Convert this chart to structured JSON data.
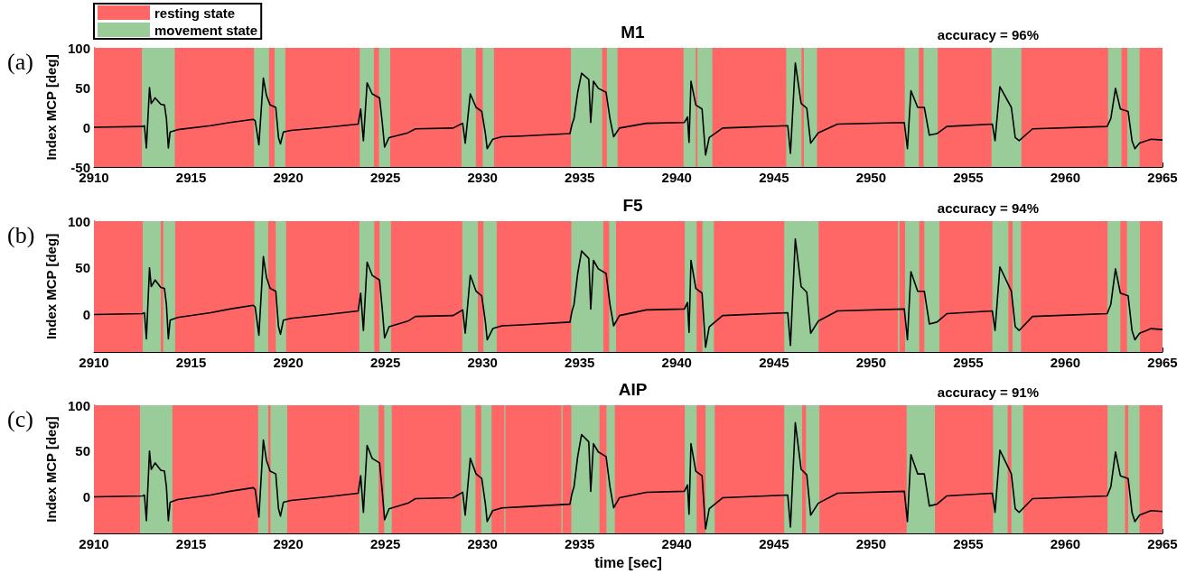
{
  "chart_data": [
    {
      "type": "line",
      "title": "M1",
      "ylabel": "Index MCP [deg]",
      "annotations": [
        "(a)",
        "accuracy = 96%"
      ],
      "legend": "top left",
      "xlim": [
        2910,
        2965
      ],
      "xticks": [
        2910,
        2915,
        2920,
        2925,
        2930,
        2935,
        2940,
        2945,
        2950,
        2955,
        2960,
        2965
      ],
      "ylim": [
        -50,
        100
      ],
      "yticks": [
        -50,
        0,
        50,
        100
      ],
      "x": [
        2910,
        2912.5,
        2912.6,
        2912.7,
        2912.86,
        2912.95,
        2913.15,
        2913.44,
        2913.63,
        2913.73,
        2913.83,
        2913.92,
        2914.31,
        2916,
        2917,
        2918.2,
        2918.3,
        2918.49,
        2918.72,
        2918.88,
        2919.07,
        2919.36,
        2919.5,
        2919.6,
        2919.75,
        2920.14,
        2922,
        2923.6,
        2923.73,
        2923.87,
        2924.06,
        2924.32,
        2924.7,
        2924.84,
        2924.96,
        2925.19,
        2926.16,
        2926.55,
        2928.49,
        2928.98,
        2929.11,
        2929.37,
        2929.67,
        2929.96,
        2930.15,
        2930.24,
        2930.53,
        2931,
        2932,
        2934.5,
        2934.61,
        2934.71,
        2934.9,
        2935.1,
        2935.47,
        2935.57,
        2935.71,
        2935.96,
        2936.36,
        2936.56,
        2936.75,
        2937.05,
        2938.43,
        2940.39,
        2940.55,
        2940.63,
        2940.73,
        2940.98,
        2941.3,
        2941.48,
        2941.67,
        2942.36,
        2945.71,
        2945.85,
        2946.1,
        2946.4,
        2946.69,
        2946.89,
        2947.28,
        2948.27,
        2951.71,
        2951.87,
        2952.05,
        2952.4,
        2952.74,
        2953,
        2953.39,
        2953.9,
        2956.24,
        2956.38,
        2956.63,
        2957.22,
        2957.42,
        2957.62,
        2958.31,
        2962.15,
        2962.34,
        2962.58,
        2962.83,
        2963.23,
        2963.43,
        2963.58,
        2963.82,
        2964.41,
        2965
      ],
      "series": [
        {
          "color": "#000000",
          "values": [
            0,
            1,
            2,
            -26,
            50,
            30,
            37,
            29,
            28,
            11,
            -26,
            -6,
            -3,
            2,
            6,
            10,
            8,
            -22,
            62,
            40,
            28,
            25,
            -13,
            -21,
            -6,
            -4,
            0,
            4,
            23,
            -17,
            56,
            42,
            37,
            6,
            -25,
            -13,
            -7,
            -2,
            -1,
            5,
            -20,
            42,
            25,
            20,
            -8,
            -27,
            -15,
            -12,
            -11,
            -8,
            4,
            11,
            44,
            68,
            60,
            6,
            58,
            49,
            44,
            11,
            -12,
            -1,
            5,
            6,
            13,
            -19,
            58,
            28,
            23,
            -35,
            -13,
            -1,
            2,
            -33,
            81,
            30,
            24,
            -20,
            -7,
            4,
            6,
            -27,
            46,
            25,
            25,
            -10,
            -8,
            1,
            4,
            -17,
            51,
            25,
            -13,
            -17,
            -2,
            1,
            11,
            49,
            23,
            20,
            -17,
            -27,
            -20,
            -15,
            -16
          ]
        }
      ],
      "bands": [
        {
          "axis": "x",
          "from": 2910,
          "to": 2965,
          "color": "#ff6666",
          "label": "resting state"
        },
        {
          "axis": "x",
          "from": 2912.47,
          "to": 2914.16,
          "color": "#99cc99",
          "label": "movement state"
        },
        {
          "axis": "x",
          "from": 2918.24,
          "to": 2919.01,
          "color": "#99cc99"
        },
        {
          "axis": "x",
          "from": 2919.3,
          "to": 2919.85,
          "color": "#99cc99"
        },
        {
          "axis": "x",
          "from": 2923.68,
          "to": 2924.41,
          "color": "#99cc99"
        },
        {
          "axis": "x",
          "from": 2924.67,
          "to": 2925.25,
          "color": "#99cc99"
        },
        {
          "axis": "x",
          "from": 2928.92,
          "to": 2929.66,
          "color": "#99cc99"
        },
        {
          "axis": "x",
          "from": 2930.01,
          "to": 2930.59,
          "color": "#99cc99"
        },
        {
          "axis": "x",
          "from": 2934.55,
          "to": 2936.16,
          "color": "#99cc99"
        },
        {
          "axis": "x",
          "from": 2936.4,
          "to": 2936.95,
          "color": "#99cc99"
        },
        {
          "axis": "x",
          "from": 2940.35,
          "to": 2940.98,
          "color": "#99cc99"
        },
        {
          "axis": "x",
          "from": 2941.06,
          "to": 2941.83,
          "color": "#99cc99"
        },
        {
          "axis": "x",
          "from": 2945.63,
          "to": 2946.42,
          "color": "#99cc99"
        },
        {
          "axis": "x",
          "from": 2946.54,
          "to": 2947.22,
          "color": "#99cc99"
        },
        {
          "axis": "x",
          "from": 2951.73,
          "to": 2952.46,
          "color": "#99cc99"
        },
        {
          "axis": "x",
          "from": 2952.7,
          "to": 2953.43,
          "color": "#99cc99"
        },
        {
          "axis": "x",
          "from": 2956.2,
          "to": 2957.74,
          "color": "#99cc99"
        },
        {
          "axis": "x",
          "from": 2962.2,
          "to": 2962.89,
          "color": "#99cc99"
        },
        {
          "axis": "x",
          "from": 2963.19,
          "to": 2963.82,
          "color": "#99cc99"
        }
      ]
    },
    {
      "type": "line",
      "title": "F5",
      "ylabel": "Index MCP [deg]",
      "annotations": [
        "(b)",
        "accuracy = 94%"
      ],
      "xlim": [
        2910,
        2965
      ],
      "xticks": [
        2910,
        2915,
        2920,
        2925,
        2930,
        2935,
        2940,
        2945,
        2950,
        2955,
        2960,
        2965
      ],
      "ylim": [
        -40,
        100
      ],
      "yticks": [
        0,
        50,
        100
      ],
      "x": [
        2910,
        2912.5,
        2912.6,
        2912.7,
        2912.86,
        2912.95,
        2913.15,
        2913.44,
        2913.63,
        2913.73,
        2913.83,
        2913.92,
        2914.31,
        2916,
        2917,
        2918.2,
        2918.3,
        2918.49,
        2918.72,
        2918.88,
        2919.07,
        2919.36,
        2919.5,
        2919.6,
        2919.75,
        2920.14,
        2922,
        2923.6,
        2923.73,
        2923.87,
        2924.06,
        2924.32,
        2924.7,
        2924.84,
        2924.96,
        2925.19,
        2926.16,
        2926.55,
        2928.49,
        2928.98,
        2929.11,
        2929.37,
        2929.67,
        2929.96,
        2930.15,
        2930.24,
        2930.53,
        2931,
        2932,
        2934.5,
        2934.61,
        2934.71,
        2934.9,
        2935.1,
        2935.47,
        2935.57,
        2935.71,
        2935.96,
        2936.36,
        2936.56,
        2936.75,
        2937.05,
        2938.43,
        2940.39,
        2940.55,
        2940.63,
        2940.73,
        2940.98,
        2941.3,
        2941.48,
        2941.67,
        2942.36,
        2945.71,
        2945.85,
        2946.1,
        2946.4,
        2946.69,
        2946.89,
        2947.28,
        2948.27,
        2951.71,
        2951.87,
        2952.05,
        2952.4,
        2952.74,
        2953,
        2953.39,
        2953.9,
        2956.24,
        2956.38,
        2956.63,
        2957.22,
        2957.42,
        2957.62,
        2958.31,
        2962.15,
        2962.34,
        2962.58,
        2962.83,
        2963.23,
        2963.43,
        2963.58,
        2963.82,
        2964.41,
        2965
      ],
      "series": [
        {
          "color": "#000000",
          "values": [
            0,
            1,
            2,
            -26,
            50,
            30,
            37,
            29,
            28,
            11,
            -26,
            -6,
            -3,
            2,
            6,
            10,
            8,
            -22,
            62,
            40,
            28,
            25,
            -13,
            -21,
            -6,
            -4,
            0,
            4,
            23,
            -17,
            56,
            42,
            37,
            6,
            -25,
            -13,
            -7,
            -2,
            -1,
            5,
            -20,
            42,
            25,
            20,
            -8,
            -27,
            -15,
            -12,
            -11,
            -8,
            4,
            11,
            44,
            68,
            60,
            6,
            58,
            49,
            44,
            11,
            -12,
            -1,
            5,
            6,
            13,
            -19,
            58,
            28,
            23,
            -35,
            -13,
            -1,
            2,
            -33,
            81,
            30,
            24,
            -20,
            -7,
            4,
            6,
            -27,
            46,
            25,
            25,
            -10,
            -8,
            1,
            4,
            -17,
            51,
            25,
            -13,
            -17,
            -2,
            1,
            11,
            49,
            23,
            20,
            -17,
            -27,
            -20,
            -15,
            -16
          ]
        }
      ],
      "bands": [
        {
          "axis": "x",
          "from": 2910,
          "to": 2965,
          "color": "#ff6666"
        },
        {
          "axis": "x",
          "from": 2912.51,
          "to": 2913.44,
          "color": "#99cc99"
        },
        {
          "axis": "x",
          "from": 2913.57,
          "to": 2914.18,
          "color": "#99cc99"
        },
        {
          "axis": "x",
          "from": 2918.26,
          "to": 2918.97,
          "color": "#99cc99"
        },
        {
          "axis": "x",
          "from": 2919.36,
          "to": 2919.89,
          "color": "#99cc99"
        },
        {
          "axis": "x",
          "from": 2923.66,
          "to": 2924.43,
          "color": "#99cc99"
        },
        {
          "axis": "x",
          "from": 2924.7,
          "to": 2925.29,
          "color": "#99cc99"
        },
        {
          "axis": "x",
          "from": 2928.96,
          "to": 2929.76,
          "color": "#99cc99"
        },
        {
          "axis": "x",
          "from": 2930.05,
          "to": 2930.73,
          "color": "#99cc99"
        },
        {
          "axis": "x",
          "from": 2934.57,
          "to": 2936.22,
          "color": "#99cc99"
        },
        {
          "axis": "x",
          "from": 2936.52,
          "to": 2936.87,
          "color": "#99cc99"
        },
        {
          "axis": "x",
          "from": 2940.41,
          "to": 2941.02,
          "color": "#99cc99"
        },
        {
          "axis": "x",
          "from": 2941.32,
          "to": 2941.91,
          "color": "#99cc99"
        },
        {
          "axis": "x",
          "from": 2945.53,
          "to": 2947.3,
          "color": "#99cc99"
        },
        {
          "axis": "x",
          "from": 2951.38,
          "to": 2951.46,
          "color": "#99cc99"
        },
        {
          "axis": "x",
          "from": 2951.75,
          "to": 2952.48,
          "color": "#99cc99"
        },
        {
          "axis": "x",
          "from": 2952.74,
          "to": 2953.52,
          "color": "#99cc99"
        },
        {
          "axis": "x",
          "from": 2956.24,
          "to": 2957.07,
          "color": "#99cc99"
        },
        {
          "axis": "x",
          "from": 2957.28,
          "to": 2957.72,
          "color": "#99cc99"
        },
        {
          "axis": "x",
          "from": 2962.17,
          "to": 2962.83,
          "color": "#99cc99"
        },
        {
          "axis": "x",
          "from": 2963.17,
          "to": 2963.84,
          "color": "#99cc99"
        }
      ]
    },
    {
      "type": "line",
      "title": "AIP",
      "xlabel": "time [sec]",
      "ylabel": "Index MCP [deg]",
      "annotations": [
        "(c)",
        "accuracy = 91%"
      ],
      "xlim": [
        2910,
        2965
      ],
      "xticks": [
        2910,
        2915,
        2920,
        2925,
        2930,
        2935,
        2940,
        2945,
        2950,
        2955,
        2960,
        2965
      ],
      "ylim": [
        -40,
        100
      ],
      "yticks": [
        0,
        50,
        100
      ],
      "x": [
        2910,
        2912.5,
        2912.6,
        2912.7,
        2912.86,
        2912.95,
        2913.15,
        2913.44,
        2913.63,
        2913.73,
        2913.83,
        2913.92,
        2914.31,
        2916,
        2917,
        2918.2,
        2918.3,
        2918.49,
        2918.72,
        2918.88,
        2919.07,
        2919.36,
        2919.5,
        2919.6,
        2919.75,
        2920.14,
        2922,
        2923.6,
        2923.73,
        2923.87,
        2924.06,
        2924.32,
        2924.7,
        2924.84,
        2924.96,
        2925.19,
        2926.16,
        2926.55,
        2928.49,
        2928.98,
        2929.11,
        2929.37,
        2929.67,
        2929.96,
        2930.15,
        2930.24,
        2930.53,
        2931,
        2932,
        2934.5,
        2934.61,
        2934.71,
        2934.9,
        2935.1,
        2935.47,
        2935.57,
        2935.71,
        2935.96,
        2936.36,
        2936.56,
        2936.75,
        2937.05,
        2938.43,
        2940.39,
        2940.55,
        2940.63,
        2940.73,
        2940.98,
        2941.3,
        2941.48,
        2941.67,
        2942.36,
        2945.71,
        2945.85,
        2946.1,
        2946.4,
        2946.69,
        2946.89,
        2947.28,
        2948.27,
        2951.71,
        2951.87,
        2952.05,
        2952.4,
        2952.74,
        2953,
        2953.39,
        2953.9,
        2956.24,
        2956.38,
        2956.63,
        2957.22,
        2957.42,
        2957.62,
        2958.31,
        2962.15,
        2962.34,
        2962.58,
        2962.83,
        2963.23,
        2963.43,
        2963.58,
        2963.82,
        2964.41,
        2965
      ],
      "series": [
        {
          "color": "#000000",
          "values": [
            0,
            1,
            2,
            -26,
            50,
            30,
            37,
            29,
            28,
            11,
            -26,
            -6,
            -3,
            2,
            6,
            10,
            8,
            -22,
            62,
            40,
            28,
            25,
            -13,
            -21,
            -6,
            -4,
            0,
            4,
            23,
            -17,
            56,
            42,
            37,
            6,
            -25,
            -13,
            -7,
            -2,
            -1,
            5,
            -20,
            42,
            25,
            20,
            -8,
            -27,
            -15,
            -12,
            -11,
            -8,
            4,
            11,
            44,
            68,
            60,
            6,
            58,
            49,
            44,
            11,
            -12,
            -1,
            5,
            6,
            13,
            -19,
            58,
            28,
            23,
            -35,
            -13,
            -1,
            2,
            -33,
            81,
            30,
            24,
            -20,
            -7,
            4,
            6,
            -27,
            46,
            25,
            25,
            -10,
            -8,
            1,
            4,
            -17,
            51,
            25,
            -13,
            -17,
            -2,
            1,
            11,
            49,
            23,
            20,
            -17,
            -27,
            -20,
            -15,
            -16
          ]
        }
      ],
      "bands": [
        {
          "axis": "x",
          "from": 2910,
          "to": 2965,
          "color": "#ff6666"
        },
        {
          "axis": "x",
          "from": 2912.37,
          "to": 2914.04,
          "color": "#99cc99"
        },
        {
          "axis": "x",
          "from": 2918.45,
          "to": 2918.97,
          "color": "#99cc99"
        },
        {
          "axis": "x",
          "from": 2919.09,
          "to": 2919.95,
          "color": "#99cc99"
        },
        {
          "axis": "x",
          "from": 2923.66,
          "to": 2924.65,
          "color": "#99cc99"
        },
        {
          "axis": "x",
          "from": 2924.94,
          "to": 2925.33,
          "color": "#99cc99"
        },
        {
          "axis": "x",
          "from": 2928.9,
          "to": 2929.64,
          "color": "#99cc99"
        },
        {
          "axis": "x",
          "from": 2929.93,
          "to": 2930.47,
          "color": "#99cc99"
        },
        {
          "axis": "x",
          "from": 2931.12,
          "to": 2931.18,
          "color": "#99cc99"
        },
        {
          "axis": "x",
          "from": 2934.06,
          "to": 2934.12,
          "color": "#99cc99"
        },
        {
          "axis": "x",
          "from": 2934.57,
          "to": 2936.02,
          "color": "#99cc99"
        },
        {
          "axis": "x",
          "from": 2936.38,
          "to": 2936.81,
          "color": "#99cc99"
        },
        {
          "axis": "x",
          "from": 2940.41,
          "to": 2941.02,
          "color": "#99cc99"
        },
        {
          "axis": "x",
          "from": 2941.48,
          "to": 2941.95,
          "color": "#99cc99"
        },
        {
          "axis": "x",
          "from": 2945.53,
          "to": 2946.45,
          "color": "#99cc99"
        },
        {
          "axis": "x",
          "from": 2946.65,
          "to": 2947.34,
          "color": "#99cc99"
        },
        {
          "axis": "x",
          "from": 2951.83,
          "to": 2953.29,
          "color": "#99cc99"
        },
        {
          "axis": "x",
          "from": 2956.28,
          "to": 2957.03,
          "color": "#99cc99"
        },
        {
          "axis": "x",
          "from": 2957.22,
          "to": 2957.83,
          "color": "#99cc99"
        },
        {
          "axis": "x",
          "from": 2962.17,
          "to": 2963.07,
          "color": "#99cc99"
        },
        {
          "axis": "x",
          "from": 2963.23,
          "to": 2963.82,
          "color": "#99cc99"
        }
      ]
    }
  ]
}
